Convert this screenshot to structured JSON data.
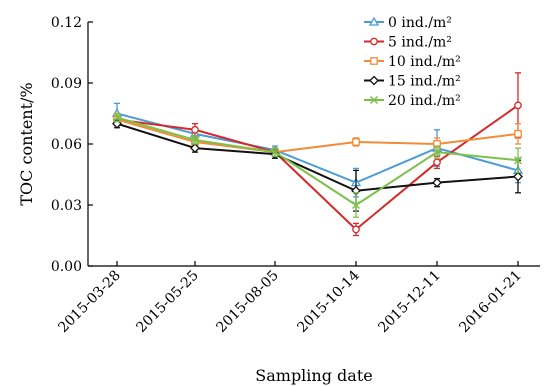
{
  "chart_data": {
    "type": "line",
    "title": "",
    "xlabel": "Sampling date",
    "ylabel": "TOC content/%",
    "categories": [
      "2015-03-28",
      "2015-05-25",
      "2015-08-05",
      "2015-10-14",
      "2015-12-11",
      "2016-01-21"
    ],
    "y_ticks": [
      "0.00",
      "0.03",
      "0.06",
      "0.09",
      "0.12"
    ],
    "ylim": [
      0,
      0.12
    ],
    "grid": false,
    "legend_position": "top-right",
    "series": [
      {
        "name": "0 ind./m²",
        "color": "#4a9bd6",
        "marker": "triangle",
        "values": [
          0.075,
          0.065,
          0.057,
          0.041,
          0.058,
          0.047
        ],
        "errors": [
          0.005,
          0.003,
          0.002,
          0.007,
          0.009,
          0.006
        ]
      },
      {
        "name": "5 ind./m²",
        "color": "#d42a2a",
        "marker": "circle",
        "values": [
          0.072,
          0.067,
          0.056,
          0.018,
          0.051,
          0.079
        ],
        "errors": [
          0.003,
          0.003,
          0.002,
          0.003,
          0.003,
          0.016
        ]
      },
      {
        "name": "10 ind./m²",
        "color": "#f08c3a",
        "marker": "square",
        "values": [
          0.072,
          0.061,
          0.056,
          0.061,
          0.06,
          0.065
        ],
        "errors": [
          0.002,
          0.002,
          0.002,
          0.002,
          0.003,
          0.005
        ]
      },
      {
        "name": "15 ind./m²",
        "color": "#111111",
        "marker": "diamond",
        "values": [
          0.07,
          0.058,
          0.055,
          0.037,
          0.041,
          0.044
        ],
        "errors": [
          0.002,
          0.002,
          0.002,
          0.01,
          0.002,
          0.008
        ]
      },
      {
        "name": "20 ind./m²",
        "color": "#7cc04a",
        "marker": "x",
        "values": [
          0.073,
          0.062,
          0.056,
          0.03,
          0.056,
          0.052
        ],
        "errors": [
          0.002,
          0.002,
          0.002,
          0.006,
          0.003,
          0.006
        ]
      }
    ]
  }
}
